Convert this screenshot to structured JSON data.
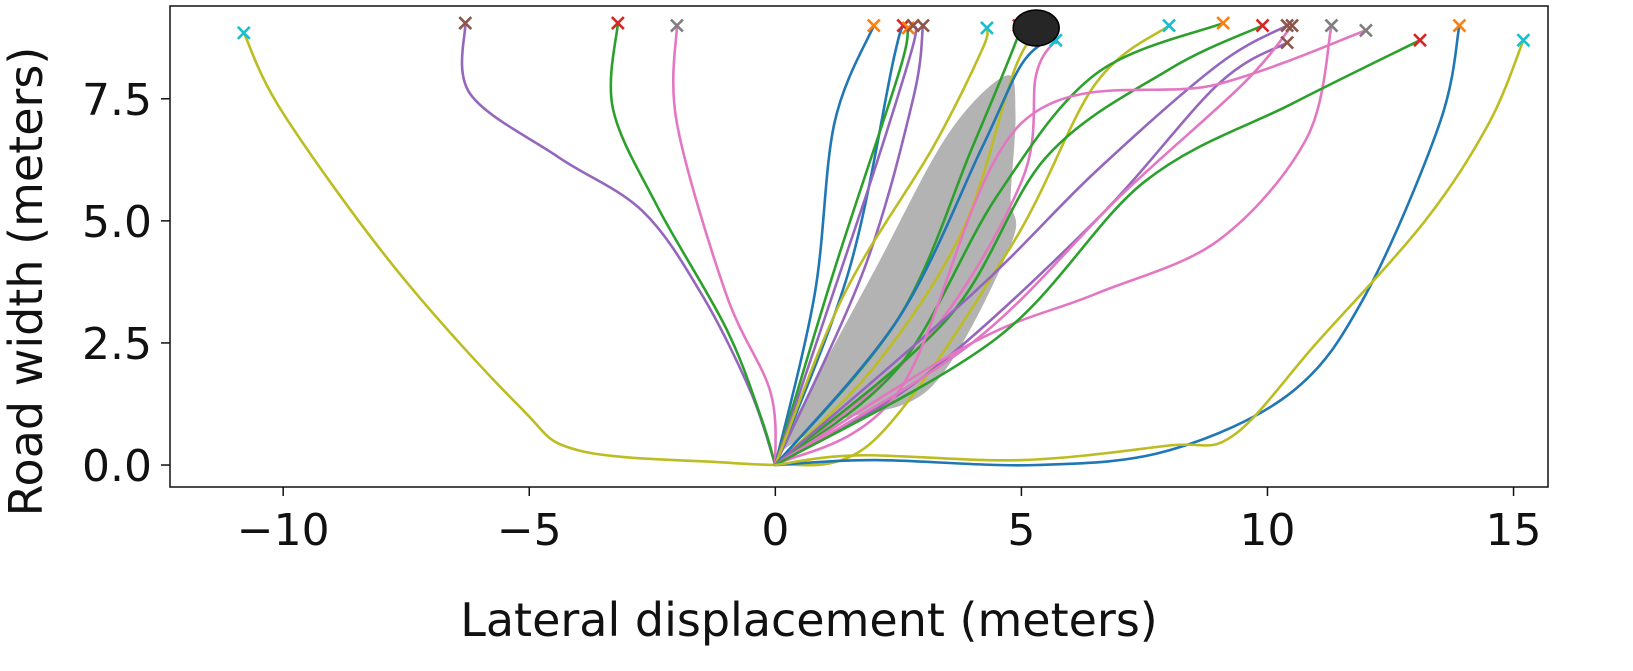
{
  "chart_data": {
    "type": "line",
    "xlabel": "Lateral displacement (meters)",
    "ylabel": "Road width (meters)",
    "xlim": [
      -12.3,
      15.7
    ],
    "ylim": [
      -0.45,
      9.4
    ],
    "xticks": [
      -10,
      -5,
      0,
      5,
      10,
      15
    ],
    "xtick_labels": [
      "−10",
      "−5",
      "0",
      "5",
      "10",
      "15"
    ],
    "yticks": [
      0.0,
      2.5,
      5.0,
      7.5
    ],
    "ytick_labels": [
      "0.0",
      "2.5",
      "5.0",
      "7.5"
    ],
    "grid": false,
    "legend": "none",
    "shaded_region": {
      "color": "#b3b3b3",
      "points": [
        [
          0,
          0
        ],
        [
          0.3,
          0.8
        ],
        [
          2,
          4
        ],
        [
          3.5,
          6.8
        ],
        [
          4.7,
          8.0
        ],
        [
          4.9,
          7.2
        ],
        [
          4.8,
          5.5
        ],
        [
          4.8,
          4.5
        ],
        [
          3.2,
          1.6
        ],
        [
          1.3,
          0.9
        ],
        [
          0.25,
          0.35
        ]
      ]
    },
    "obstacle_marker": {
      "x": 5.3,
      "y": 8.95,
      "color": "#262626"
    },
    "series": [
      {
        "color": "#bcbd22",
        "endpoint_color": "#17becf",
        "points": [
          [
            0,
            0
          ],
          [
            -1,
            0.05
          ],
          [
            -4,
            0.3
          ],
          [
            -5.2,
            1.2
          ],
          [
            -7.7,
            4.0
          ],
          [
            -10,
            7.2
          ],
          [
            -10.8,
            8.85
          ]
        ]
      },
      {
        "color": "#9467bd",
        "endpoint_color": "#8c564b",
        "points": [
          [
            0,
            0
          ],
          [
            -0.5,
            1.5
          ],
          [
            -1.5,
            3.5
          ],
          [
            -2.7,
            5.2
          ],
          [
            -4.4,
            6.3
          ],
          [
            -6.2,
            7.6
          ],
          [
            -6.3,
            9.05
          ]
        ]
      },
      {
        "color": "#2ca02c",
        "endpoint_color": "#d62728",
        "points": [
          [
            0,
            0
          ],
          [
            -0.3,
            1.0
          ],
          [
            -1.0,
            2.8
          ],
          [
            -2.4,
            5.3
          ],
          [
            -3.3,
            7.3
          ],
          [
            -3.2,
            9.05
          ]
        ]
      },
      {
        "color": "#e377c2",
        "endpoint_color": "#7f7f7f",
        "points": [
          [
            0,
            0
          ],
          [
            -0.1,
            1.5
          ],
          [
            -1.0,
            3.5
          ],
          [
            -2.0,
            7.0
          ],
          [
            -2.0,
            9.0
          ]
        ]
      },
      {
        "color": "#1f77b4",
        "endpoint_color": "#ff7f0e",
        "points": [
          [
            0,
            0
          ],
          [
            0.8,
            3.5
          ],
          [
            1.2,
            7.0
          ],
          [
            2.0,
            9.0
          ]
        ]
      },
      {
        "color": "#1f77b4",
        "endpoint_color": "#d62728",
        "points": [
          [
            0,
            0
          ],
          [
            1.5,
            4.0
          ],
          [
            2.4,
            8.3
          ],
          [
            2.6,
            9.0
          ]
        ]
      },
      {
        "color": "#2ca02c",
        "endpoint_color": "#ff7f0e",
        "points": [
          [
            0,
            0
          ],
          [
            1.2,
            4.0
          ],
          [
            2.5,
            8.0
          ],
          [
            2.7,
            8.95
          ]
        ]
      },
      {
        "color": "#9467bd",
        "endpoint_color": "#8c564b",
        "points": [
          [
            0,
            0
          ],
          [
            1.0,
            3.0
          ],
          [
            2.0,
            6.0
          ],
          [
            2.8,
            8.6
          ],
          [
            2.8,
            9.0
          ]
        ]
      },
      {
        "color": "#9467bd",
        "endpoint_color": "#8c564b",
        "points": [
          [
            0,
            0
          ],
          [
            1.8,
            4.0
          ],
          [
            2.8,
            7.5
          ],
          [
            3.0,
            9.0
          ]
        ]
      },
      {
        "color": "#bcbd22",
        "endpoint_color": "#17becf",
        "points": [
          [
            0,
            0
          ],
          [
            1.4,
            3.5
          ],
          [
            3.2,
            6.5
          ],
          [
            4.2,
            8.5
          ],
          [
            4.3,
            8.95
          ]
        ]
      },
      {
        "color": "#2ca02c",
        "endpoint_color": "#d62728",
        "points": [
          [
            0,
            0
          ],
          [
            2.5,
            3.0
          ],
          [
            4.0,
            6.5
          ],
          [
            4.9,
            8.7
          ],
          [
            4.95,
            9.0
          ]
        ]
      },
      {
        "color": "#bcbd22",
        "endpoint_color": "#ff7f0e",
        "points": [
          [
            0,
            0
          ],
          [
            2.0,
            2.0
          ],
          [
            3.8,
            4.8
          ],
          [
            4.9,
            8.2
          ],
          [
            5.5,
            9.0
          ]
        ]
      },
      {
        "color": "#e377c2",
        "endpoint_color": "#17becf",
        "points": [
          [
            0,
            0
          ],
          [
            3.0,
            2.5
          ],
          [
            5.0,
            5.8
          ],
          [
            5.3,
            8.0
          ],
          [
            5.7,
            8.7
          ]
        ]
      },
      {
        "color": "#1f77b4",
        "endpoint_color": "#17becf",
        "points": [
          [
            0,
            0
          ],
          [
            2.5,
            3.0
          ],
          [
            4.2,
            6.5
          ],
          [
            5.0,
            8.2
          ],
          [
            5.6,
            8.75
          ]
        ]
      },
      {
        "color": "#bcbd22",
        "endpoint_color": "#17becf",
        "points": [
          [
            0,
            0
          ],
          [
            2.0,
            0.5
          ],
          [
            4.8,
            4.5
          ],
          [
            6.5,
            7.8
          ],
          [
            8.0,
            9.0
          ]
        ]
      },
      {
        "color": "#2ca02c",
        "endpoint_color": "#ff7f0e",
        "points": [
          [
            0,
            0
          ],
          [
            2.5,
            2.0
          ],
          [
            4.5,
            5.5
          ],
          [
            6.5,
            8.0
          ],
          [
            9.1,
            9.05
          ]
        ]
      },
      {
        "color": "#2ca02c",
        "endpoint_color": "#d62728",
        "points": [
          [
            0,
            0
          ],
          [
            3.5,
            3.0
          ],
          [
            5.5,
            6.3
          ],
          [
            8.0,
            8.1
          ],
          [
            9.9,
            9.0
          ]
        ]
      },
      {
        "color": "#9467bd",
        "endpoint_color": "#8c564b",
        "points": [
          [
            0,
            0
          ],
          [
            4.0,
            3.5
          ],
          [
            6.5,
            6.0
          ],
          [
            9.0,
            8.2
          ],
          [
            10.4,
            9.0
          ]
        ]
      },
      {
        "color": "#9467bd",
        "endpoint_color": "#8c564b",
        "points": [
          [
            0,
            0
          ],
          [
            3.0,
            1.8
          ],
          [
            6.5,
            5.0
          ],
          [
            9.0,
            7.8
          ],
          [
            10.4,
            8.65
          ]
        ]
      },
      {
        "color": "#e377c2",
        "endpoint_color": "#8c564b",
        "points": [
          [
            0,
            0
          ],
          [
            4.0,
            2.5
          ],
          [
            7.0,
            5.5
          ],
          [
            9.5,
            7.8
          ],
          [
            10.5,
            9.0
          ]
        ]
      },
      {
        "color": "#e377c2",
        "endpoint_color": "#7f7f7f",
        "points": [
          [
            0,
            0
          ],
          [
            4.0,
            2.5
          ],
          [
            6.5,
            3.5
          ],
          [
            9.0,
            4.6
          ],
          [
            10.8,
            6.7
          ],
          [
            11.3,
            9.0
          ]
        ]
      },
      {
        "color": "#e377c2",
        "endpoint_color": "#7f7f7f",
        "points": [
          [
            0,
            0
          ],
          [
            2.5,
            1.5
          ],
          [
            5.0,
            7.0
          ],
          [
            9.0,
            7.8
          ],
          [
            12.0,
            8.9
          ]
        ]
      },
      {
        "color": "#2ca02c",
        "endpoint_color": "#d62728",
        "points": [
          [
            0,
            0
          ],
          [
            4.5,
            2.6
          ],
          [
            7.5,
            5.8
          ],
          [
            10.5,
            7.4
          ],
          [
            13.1,
            8.7
          ]
        ]
      },
      {
        "color": "#1f77b4",
        "endpoint_color": "#ff7f0e",
        "points": [
          [
            0,
            0
          ],
          [
            2.0,
            0.1
          ],
          [
            5.3,
            0.0
          ],
          [
            8.0,
            0.3
          ],
          [
            10.5,
            1.5
          ],
          [
            12.0,
            3.5
          ],
          [
            13.5,
            7.0
          ],
          [
            13.9,
            9.0
          ]
        ]
      },
      {
        "color": "#bcbd22",
        "endpoint_color": "#17becf",
        "points": [
          [
            0,
            0
          ],
          [
            1.7,
            0.2
          ],
          [
            5.0,
            0.1
          ],
          [
            8.0,
            0.4
          ],
          [
            9.3,
            0.6
          ],
          [
            11.0,
            2.5
          ],
          [
            13.2,
            5.0
          ],
          [
            14.5,
            7.0
          ],
          [
            15.2,
            8.7
          ]
        ]
      }
    ]
  }
}
